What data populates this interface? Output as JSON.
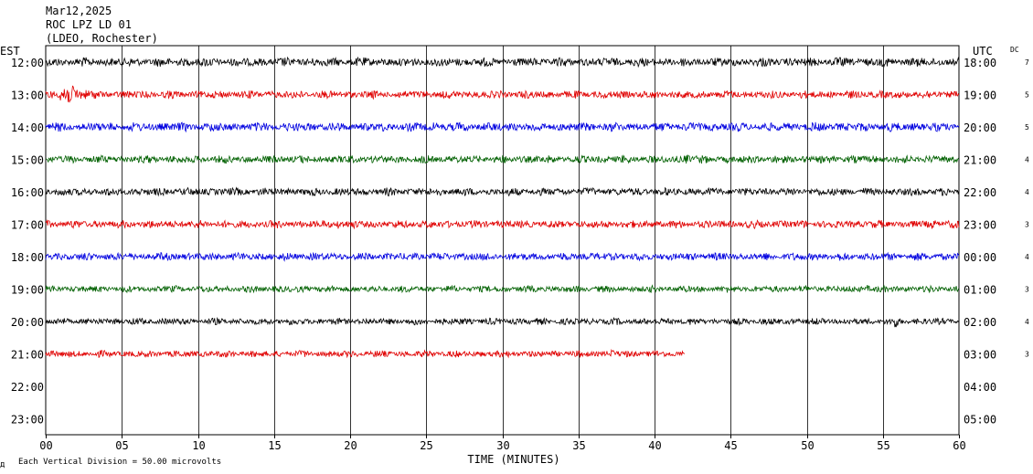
{
  "header": {
    "date": "Mar12,2025",
    "station": "ROC LPZ LD 01",
    "network": "(LDEO, Rochester)"
  },
  "left_axis_label": "EST",
  "right_axis_label": "UTC",
  "dc_label": "DC",
  "footer": {
    "corner_mark": "д",
    "scale_note": "Each Vertical Division =   50.00 microvolts"
  },
  "chart_data": {
    "type": "line",
    "title": "",
    "xlabel": "TIME (MINUTES)",
    "xlim": [
      0,
      60
    ],
    "x_ticks": [
      "00",
      "05",
      "10",
      "15",
      "20",
      "25",
      "30",
      "35",
      "40",
      "45",
      "50",
      "55",
      "60"
    ],
    "grid_vertical": true,
    "colors": [
      "#000000",
      "#e00000",
      "#0000e0",
      "#006000"
    ],
    "rows": [
      {
        "est": "12:00",
        "utc": "18:00",
        "dc": "7",
        "color": "#000000",
        "end_min": 60,
        "amplitude": 4,
        "events": []
      },
      {
        "est": "13:00",
        "utc": "19:00",
        "dc": "5",
        "color": "#e00000",
        "end_min": 60,
        "amplitude": 3.5,
        "events": [
          {
            "t": 1.0,
            "amp": 15,
            "dur": 2.5
          }
        ]
      },
      {
        "est": "14:00",
        "utc": "20:00",
        "dc": "5",
        "color": "#0000e0",
        "end_min": 60,
        "amplitude": 4,
        "events": [
          {
            "t": 25.5,
            "amp": 5,
            "dur": 0.6
          }
        ]
      },
      {
        "est": "15:00",
        "utc": "21:00",
        "dc": "4",
        "color": "#006000",
        "end_min": 60,
        "amplitude": 3.5,
        "events": [
          {
            "t": 42.0,
            "amp": 7,
            "dur": 1.0
          }
        ]
      },
      {
        "est": "16:00",
        "utc": "22:00",
        "dc": "4",
        "color": "#000000",
        "end_min": 60,
        "amplitude": 3.5,
        "events": []
      },
      {
        "est": "17:00",
        "utc": "23:00",
        "dc": "3",
        "color": "#e00000",
        "end_min": 60,
        "amplitude": 3.5,
        "events": [
          {
            "t": 19.2,
            "amp": 7,
            "dur": 0.8
          },
          {
            "t": 58.2,
            "amp": 5,
            "dur": 1.2
          }
        ]
      },
      {
        "est": "18:00",
        "utc": "00:00",
        "dc": "4",
        "color": "#0000e0",
        "end_min": 60,
        "amplitude": 3.5,
        "events": []
      },
      {
        "est": "19:00",
        "utc": "01:00",
        "dc": "3",
        "color": "#006000",
        "end_min": 60,
        "amplitude": 3,
        "events": [
          {
            "t": 54.0,
            "amp": 5,
            "dur": 0.6
          }
        ]
      },
      {
        "est": "20:00",
        "utc": "02:00",
        "dc": "4",
        "color": "#000000",
        "end_min": 60,
        "amplitude": 3,
        "events": [
          {
            "t": 55.8,
            "amp": 6,
            "dur": 0.4
          }
        ]
      },
      {
        "est": "21:00",
        "utc": "03:00",
        "dc": "3",
        "color": "#e00000",
        "end_min": 42,
        "amplitude": 3,
        "events": [
          {
            "t": 37.2,
            "amp": 4,
            "dur": 0.8
          }
        ]
      },
      {
        "est": "22:00",
        "utc": "04:00",
        "dc": "",
        "color": "#e00000",
        "end_min": 0,
        "amplitude": 0,
        "events": []
      },
      {
        "est": "23:00",
        "utc": "05:00",
        "dc": "",
        "color": "#e00000",
        "end_min": 0,
        "amplitude": 0,
        "events": []
      }
    ]
  }
}
